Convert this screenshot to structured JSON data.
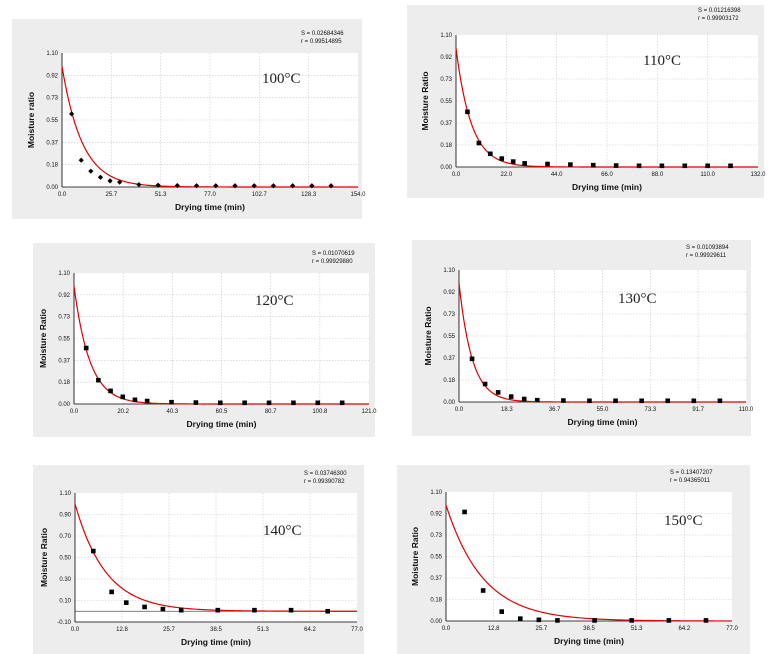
{
  "colors": {
    "curve": "#e00000",
    "marker": "#000000",
    "grid": "#c8c8c8",
    "panel": "#ededed",
    "plot": "#ffffff"
  },
  "chart_data": [
    {
      "type": "scatter",
      "temperature_label": "100°C",
      "stat_s": "S = 0.02684346",
      "stat_r": "r = 0.99514895",
      "xlabel": "Drying time (min)",
      "ylabel": "Moisture ratio",
      "xlim": [
        0,
        154
      ],
      "ylim": [
        0,
        1.1
      ],
      "x_ticks": [
        "0.0",
        "25.7",
        "51.3",
        "77.0",
        "102.7",
        "128.3",
        "154.0"
      ],
      "y_ticks": [
        "0.00",
        "0.18",
        "0.37",
        "0.55",
        "0.73",
        "0.92",
        "1.10"
      ],
      "marker": "diamond",
      "points": [
        [
          5,
          0.6
        ],
        [
          10,
          0.22
        ],
        [
          15,
          0.13
        ],
        [
          20,
          0.08
        ],
        [
          25,
          0.05
        ],
        [
          30,
          0.04
        ],
        [
          40,
          0.02
        ],
        [
          50,
          0.015
        ],
        [
          60,
          0.012
        ],
        [
          70,
          0.01
        ],
        [
          80,
          0.01
        ],
        [
          90,
          0.01
        ],
        [
          100,
          0.01
        ],
        [
          110,
          0.01
        ],
        [
          120,
          0.01
        ],
        [
          130,
          0.01
        ],
        [
          140,
          0.01
        ]
      ],
      "fit": {
        "a": 0.99,
        "k": 0.095
      }
    },
    {
      "type": "scatter",
      "temperature_label": "110°C",
      "stat_s": "S = 0.01216398",
      "stat_r": "r = 0.99903172",
      "xlabel": "Drying time (min)",
      "ylabel": "Moisture Ratio",
      "xlim": [
        0,
        132
      ],
      "ylim": [
        0,
        1.1
      ],
      "x_ticks": [
        "0.0",
        "22.0",
        "44.0",
        "66.0",
        "88.0",
        "110.0",
        "132.0"
      ],
      "y_ticks": [
        "0.00",
        "0.18",
        "0.37",
        "0.55",
        "0.73",
        "0.92",
        "1.10"
      ],
      "marker": "square",
      "points": [
        [
          5,
          0.46
        ],
        [
          10,
          0.2
        ],
        [
          15,
          0.11
        ],
        [
          20,
          0.07
        ],
        [
          25,
          0.045
        ],
        [
          30,
          0.03
        ],
        [
          40,
          0.025
        ],
        [
          50,
          0.02
        ],
        [
          60,
          0.015
        ],
        [
          70,
          0.012
        ],
        [
          80,
          0.01
        ],
        [
          90,
          0.01
        ],
        [
          100,
          0.01
        ],
        [
          110,
          0.01
        ],
        [
          120,
          0.01
        ]
      ],
      "fit": {
        "a": 0.99,
        "k": 0.15
      }
    },
    {
      "type": "scatter",
      "temperature_label": "120°C",
      "stat_s": "S = 0.01070619",
      "stat_r": "r = 0.99929880",
      "xlabel": "Drying time (min)",
      "ylabel": "Moisture Ratio",
      "xlim": [
        0,
        121
      ],
      "ylim": [
        0,
        1.1
      ],
      "x_ticks": [
        "0.0",
        "20.2",
        "40.3",
        "60.5",
        "80.7",
        "100.8",
        "121.0"
      ],
      "y_ticks": [
        "0.00",
        "0.18",
        "0.37",
        "0.55",
        "0.73",
        "0.92",
        "1.10"
      ],
      "marker": "square",
      "points": [
        [
          5,
          0.47
        ],
        [
          10,
          0.2
        ],
        [
          15,
          0.11
        ],
        [
          20,
          0.06
        ],
        [
          25,
          0.035
        ],
        [
          30,
          0.025
        ],
        [
          40,
          0.015
        ],
        [
          50,
          0.012
        ],
        [
          60,
          0.01
        ],
        [
          70,
          0.01
        ],
        [
          80,
          0.01
        ],
        [
          90,
          0.01
        ],
        [
          100,
          0.01
        ],
        [
          110,
          0.01
        ]
      ],
      "fit": {
        "a": 0.99,
        "k": 0.155
      }
    },
    {
      "type": "scatter",
      "temperature_label": "130°C",
      "stat_s": "S = 0.01093894",
      "stat_r": "r = 0.99929611",
      "xlabel": "Drying time (min)",
      "ylabel": "Moisture Ratio",
      "xlim": [
        0,
        110
      ],
      "ylim": [
        0,
        1.1
      ],
      "x_ticks": [
        "0.0",
        "18.3",
        "36.7",
        "55.0",
        "73.3",
        "91.7",
        "110.0"
      ],
      "y_ticks": [
        "0.00",
        "0.18",
        "0.37",
        "0.55",
        "0.73",
        "0.92",
        "1.10"
      ],
      "marker": "square",
      "points": [
        [
          5,
          0.36
        ],
        [
          10,
          0.15
        ],
        [
          15,
          0.08
        ],
        [
          20,
          0.045
        ],
        [
          25,
          0.025
        ],
        [
          30,
          0.015
        ],
        [
          40,
          0.012
        ],
        [
          50,
          0.01
        ],
        [
          60,
          0.01
        ],
        [
          70,
          0.01
        ],
        [
          80,
          0.01
        ],
        [
          90,
          0.01
        ],
        [
          100,
          0.01
        ]
      ],
      "fit": {
        "a": 0.99,
        "k": 0.2
      }
    },
    {
      "type": "scatter",
      "temperature_label": "140°C",
      "stat_s": "S = 0.03746300",
      "stat_r": "r = 0.99390782",
      "xlabel": "Drying time (min)",
      "ylabel": "Moisture Ratio",
      "xlim": [
        0,
        77
      ],
      "ylim": [
        -0.1,
        1.1
      ],
      "x_ticks": [
        "0.0",
        "12.8",
        "25.7",
        "38.5",
        "51.3",
        "64.2",
        "77.0"
      ],
      "y_ticks": [
        "-0.10",
        "0.10",
        "0.30",
        "0.50",
        "0.70",
        "0.90",
        "1.10"
      ],
      "zero_line": true,
      "marker": "square",
      "points": [
        [
          5,
          0.56
        ],
        [
          10,
          0.18
        ],
        [
          14,
          0.08
        ],
        [
          19,
          0.04
        ],
        [
          24,
          0.02
        ],
        [
          29,
          0.01
        ],
        [
          39,
          0.01
        ],
        [
          49,
          0.01
        ],
        [
          59,
          0.01
        ],
        [
          69,
          0.0
        ]
      ],
      "fit": {
        "a": 1.0,
        "k": 0.12
      }
    },
    {
      "type": "scatter",
      "temperature_label": "150°C",
      "stat_s": "S = 0.13407207",
      "stat_r": "r = 0.94365011",
      "xlabel": "Drying time (min)",
      "ylabel": "Moisture Ratio",
      "xlim": [
        0,
        77
      ],
      "ylim": [
        0,
        1.1
      ],
      "x_ticks": [
        "0.0",
        "12.8",
        "25.7",
        "38.5",
        "51.3",
        "64.2",
        "77.0"
      ],
      "y_ticks": [
        "0.00",
        "0.18",
        "0.37",
        "0.55",
        "0.73",
        "0.92",
        "1.10"
      ],
      "marker": "square",
      "points": [
        [
          5,
          0.93
        ],
        [
          10,
          0.26
        ],
        [
          15,
          0.08
        ],
        [
          20,
          0.02
        ],
        [
          25,
          0.01
        ],
        [
          30,
          0.005
        ],
        [
          40,
          0.005
        ],
        [
          50,
          0.005
        ],
        [
          60,
          0.005
        ],
        [
          70,
          0.005
        ]
      ],
      "fit": {
        "a": 0.99,
        "k": 0.1
      }
    }
  ]
}
